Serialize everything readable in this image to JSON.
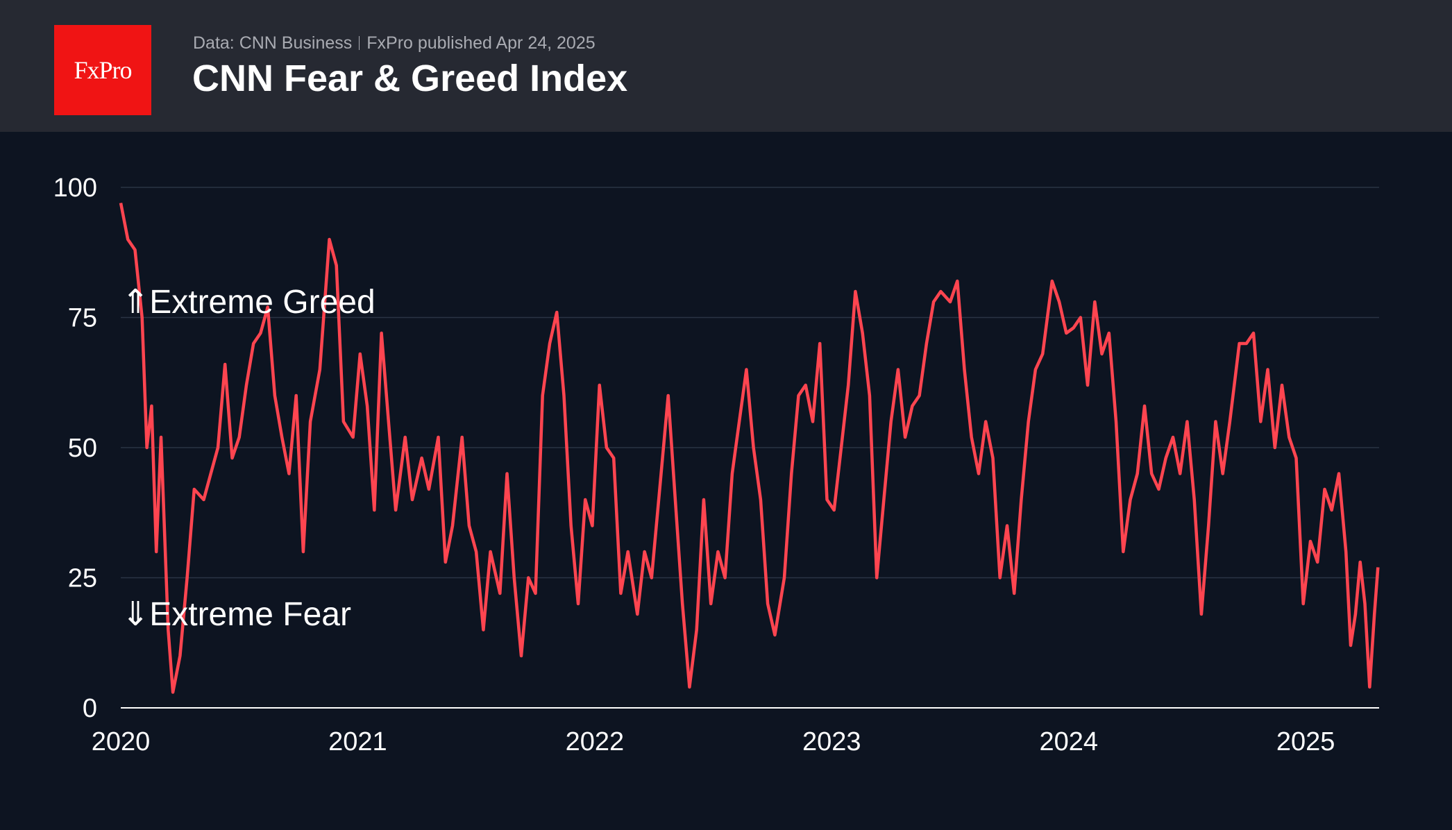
{
  "header": {
    "logo_text": "FxPro",
    "source": "Data: CNN Business",
    "published": "FxPro published Apr 24, 2025",
    "title": "CNN Fear & Greed Index"
  },
  "colors": {
    "line": "#ff4550",
    "background": "#0d1421",
    "header": "#262932",
    "logo": "#f01414"
  },
  "chart_data": {
    "type": "line",
    "title": "CNN Fear & Greed Index",
    "xlabel": "",
    "ylabel": "",
    "xlim": [
      2020.0,
      2025.31
    ],
    "ylim": [
      0,
      100
    ],
    "x_ticks": [
      {
        "value": 2020,
        "label": "2020"
      },
      {
        "value": 2021,
        "label": "2021"
      },
      {
        "value": 2022,
        "label": "2022"
      },
      {
        "value": 2023,
        "label": "2023"
      },
      {
        "value": 2024,
        "label": "2024"
      },
      {
        "value": 2025,
        "label": "2025"
      }
    ],
    "y_ticks": [
      {
        "value": 0,
        "label": "0"
      },
      {
        "value": 25,
        "label": "25"
      },
      {
        "value": 50,
        "label": "50"
      },
      {
        "value": 75,
        "label": "75"
      },
      {
        "value": 100,
        "label": "100"
      }
    ],
    "grid": true,
    "annotations": [
      {
        "text": "⇑Extreme Greed",
        "y": 78
      },
      {
        "text": "⇓Extreme Fear",
        "y": 18
      }
    ],
    "series": [
      {
        "name": "Fear & Greed Index",
        "points": [
          [
            2020.0,
            97
          ],
          [
            2020.03,
            90
          ],
          [
            2020.06,
            88
          ],
          [
            2020.09,
            75
          ],
          [
            2020.11,
            50
          ],
          [
            2020.13,
            58
          ],
          [
            2020.15,
            30
          ],
          [
            2020.17,
            52
          ],
          [
            2020.2,
            15
          ],
          [
            2020.22,
            3
          ],
          [
            2020.25,
            10
          ],
          [
            2020.28,
            25
          ],
          [
            2020.31,
            42
          ],
          [
            2020.35,
            40
          ],
          [
            2020.38,
            45
          ],
          [
            2020.41,
            50
          ],
          [
            2020.44,
            66
          ],
          [
            2020.47,
            48
          ],
          [
            2020.5,
            52
          ],
          [
            2020.53,
            62
          ],
          [
            2020.56,
            70
          ],
          [
            2020.59,
            72
          ],
          [
            2020.62,
            77
          ],
          [
            2020.65,
            60
          ],
          [
            2020.68,
            52
          ],
          [
            2020.71,
            45
          ],
          [
            2020.74,
            60
          ],
          [
            2020.77,
            30
          ],
          [
            2020.8,
            55
          ],
          [
            2020.84,
            65
          ],
          [
            2020.88,
            90
          ],
          [
            2020.91,
            85
          ],
          [
            2020.94,
            55
          ],
          [
            2020.98,
            52
          ],
          [
            2021.01,
            68
          ],
          [
            2021.04,
            58
          ],
          [
            2021.07,
            38
          ],
          [
            2021.1,
            72
          ],
          [
            2021.13,
            55
          ],
          [
            2021.16,
            38
          ],
          [
            2021.2,
            52
          ],
          [
            2021.23,
            40
          ],
          [
            2021.27,
            48
          ],
          [
            2021.3,
            42
          ],
          [
            2021.34,
            52
          ],
          [
            2021.37,
            28
          ],
          [
            2021.4,
            35
          ],
          [
            2021.44,
            52
          ],
          [
            2021.47,
            35
          ],
          [
            2021.5,
            30
          ],
          [
            2021.53,
            15
          ],
          [
            2021.56,
            30
          ],
          [
            2021.6,
            22
          ],
          [
            2021.63,
            45
          ],
          [
            2021.66,
            25
          ],
          [
            2021.69,
            10
          ],
          [
            2021.72,
            25
          ],
          [
            2021.75,
            22
          ],
          [
            2021.78,
            60
          ],
          [
            2021.81,
            70
          ],
          [
            2021.84,
            76
          ],
          [
            2021.87,
            60
          ],
          [
            2021.9,
            35
          ],
          [
            2021.93,
            20
          ],
          [
            2021.96,
            40
          ],
          [
            2021.99,
            35
          ],
          [
            2022.02,
            62
          ],
          [
            2022.05,
            50
          ],
          [
            2022.08,
            48
          ],
          [
            2022.11,
            22
          ],
          [
            2022.14,
            30
          ],
          [
            2022.18,
            18
          ],
          [
            2022.21,
            30
          ],
          [
            2022.24,
            25
          ],
          [
            2022.28,
            45
          ],
          [
            2022.31,
            60
          ],
          [
            2022.34,
            40
          ],
          [
            2022.37,
            20
          ],
          [
            2022.4,
            4
          ],
          [
            2022.43,
            15
          ],
          [
            2022.46,
            40
          ],
          [
            2022.49,
            20
          ],
          [
            2022.52,
            30
          ],
          [
            2022.55,
            25
          ],
          [
            2022.58,
            45
          ],
          [
            2022.61,
            55
          ],
          [
            2022.64,
            65
          ],
          [
            2022.67,
            50
          ],
          [
            2022.7,
            40
          ],
          [
            2022.73,
            20
          ],
          [
            2022.76,
            14
          ],
          [
            2022.8,
            25
          ],
          [
            2022.83,
            45
          ],
          [
            2022.86,
            60
          ],
          [
            2022.89,
            62
          ],
          [
            2022.92,
            55
          ],
          [
            2022.95,
            70
          ],
          [
            2022.98,
            40
          ],
          [
            2023.01,
            38
          ],
          [
            2023.04,
            50
          ],
          [
            2023.07,
            62
          ],
          [
            2023.1,
            80
          ],
          [
            2023.13,
            72
          ],
          [
            2023.16,
            60
          ],
          [
            2023.19,
            25
          ],
          [
            2023.22,
            40
          ],
          [
            2023.25,
            55
          ],
          [
            2023.28,
            65
          ],
          [
            2023.31,
            52
          ],
          [
            2023.34,
            58
          ],
          [
            2023.37,
            60
          ],
          [
            2023.4,
            70
          ],
          [
            2023.43,
            78
          ],
          [
            2023.46,
            80
          ],
          [
            2023.5,
            78
          ],
          [
            2023.53,
            82
          ],
          [
            2023.56,
            65
          ],
          [
            2023.59,
            52
          ],
          [
            2023.62,
            45
          ],
          [
            2023.65,
            55
          ],
          [
            2023.68,
            48
          ],
          [
            2023.71,
            25
          ],
          [
            2023.74,
            35
          ],
          [
            2023.77,
            22
          ],
          [
            2023.8,
            40
          ],
          [
            2023.83,
            55
          ],
          [
            2023.86,
            65
          ],
          [
            2023.89,
            68
          ],
          [
            2023.93,
            82
          ],
          [
            2023.96,
            78
          ],
          [
            2023.99,
            72
          ],
          [
            2024.02,
            73
          ],
          [
            2024.05,
            75
          ],
          [
            2024.08,
            62
          ],
          [
            2024.11,
            78
          ],
          [
            2024.14,
            68
          ],
          [
            2024.17,
            72
          ],
          [
            2024.2,
            55
          ],
          [
            2024.23,
            30
          ],
          [
            2024.26,
            40
          ],
          [
            2024.29,
            45
          ],
          [
            2024.32,
            58
          ],
          [
            2024.35,
            45
          ],
          [
            2024.38,
            42
          ],
          [
            2024.41,
            48
          ],
          [
            2024.44,
            52
          ],
          [
            2024.47,
            45
          ],
          [
            2024.5,
            55
          ],
          [
            2024.53,
            40
          ],
          [
            2024.56,
            18
          ],
          [
            2024.59,
            35
          ],
          [
            2024.62,
            55
          ],
          [
            2024.65,
            45
          ],
          [
            2024.68,
            55
          ],
          [
            2024.72,
            70
          ],
          [
            2024.75,
            70
          ],
          [
            2024.78,
            72
          ],
          [
            2024.81,
            55
          ],
          [
            2024.84,
            65
          ],
          [
            2024.87,
            50
          ],
          [
            2024.9,
            62
          ],
          [
            2024.93,
            52
          ],
          [
            2024.96,
            48
          ],
          [
            2024.99,
            20
          ],
          [
            2025.02,
            32
          ],
          [
            2025.05,
            28
          ],
          [
            2025.08,
            42
          ],
          [
            2025.11,
            38
          ],
          [
            2025.14,
            45
          ],
          [
            2025.17,
            30
          ],
          [
            2025.19,
            12
          ],
          [
            2025.21,
            18
          ],
          [
            2025.23,
            28
          ],
          [
            2025.25,
            20
          ],
          [
            2025.27,
            4
          ],
          [
            2025.29,
            18
          ],
          [
            2025.305,
            27
          ]
        ]
      }
    ]
  }
}
